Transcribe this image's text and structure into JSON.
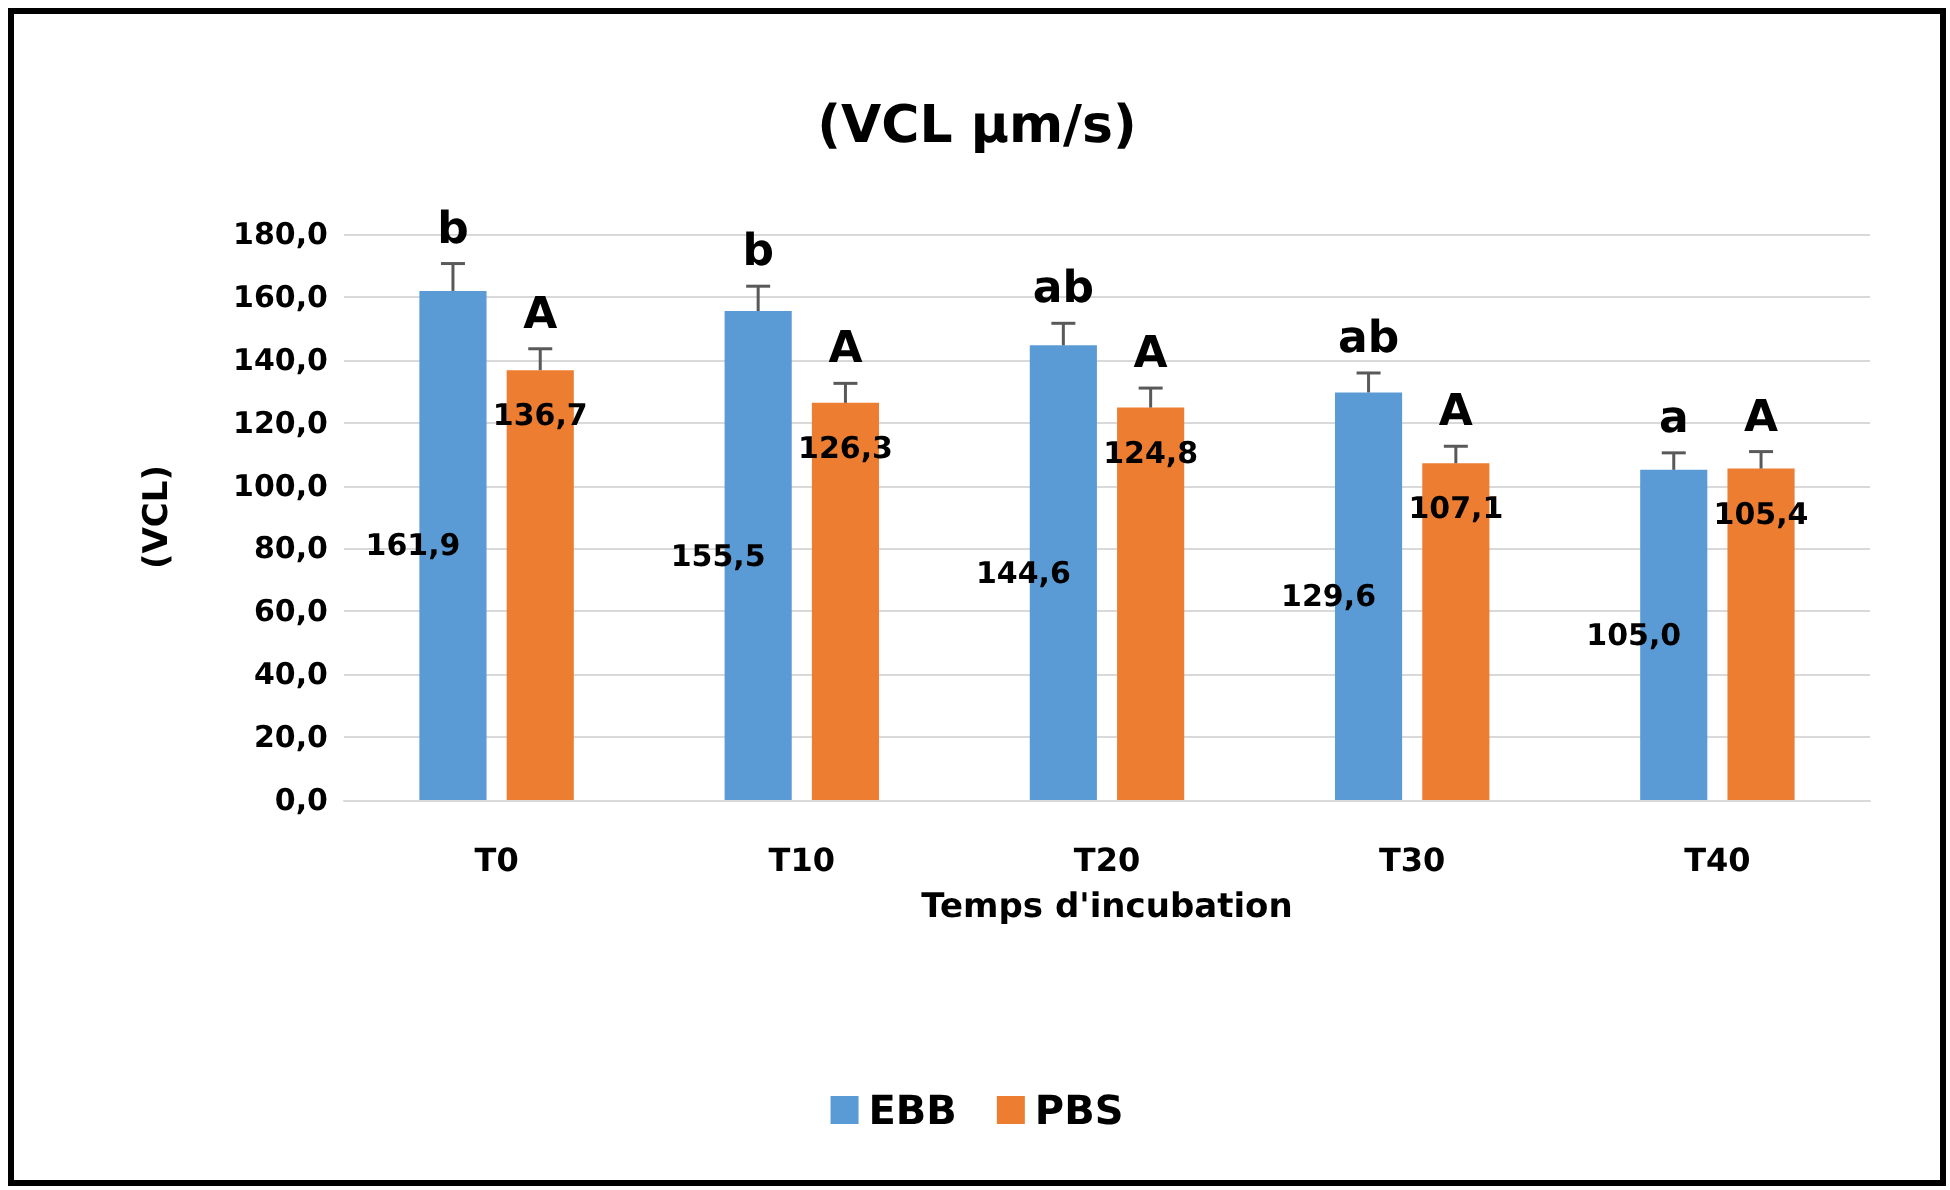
{
  "chart_data": {
    "type": "bar",
    "title": "(VCL µm/s)",
    "xlabel": "Temps d'incubation",
    "ylabel": "(VCL)",
    "categories": [
      "T0",
      "T10",
      "T20",
      "T30",
      "T40"
    ],
    "series": [
      {
        "name": "EBB",
        "color": "#5b9bd5",
        "values": [
          161.9,
          155.5,
          144.6,
          129.6,
          105.0
        ],
        "errors": [
          8.7,
          7.9,
          7.0,
          6.2,
          5.4
        ],
        "value_labels": [
          "161,9",
          "155,5",
          "144,6",
          "129,6",
          "105,0"
        ]
      },
      {
        "name": "PBS",
        "color": "#ed7d31",
        "values": [
          136.7,
          126.3,
          124.8,
          107.1,
          105.4
        ],
        "errors": [
          6.8,
          6.2,
          6.2,
          5.4,
          5.4
        ],
        "value_labels": [
          "136,7",
          "126,3",
          "124,8",
          "107,1",
          "105,4"
        ]
      }
    ],
    "ylim": [
      0,
      180
    ],
    "yticks": [
      {
        "value": 0,
        "label": "0,0"
      },
      {
        "value": 20,
        "label": "20,0"
      },
      {
        "value": 40,
        "label": "40,0"
      },
      {
        "value": 60,
        "label": "60,0"
      },
      {
        "value": 80,
        "label": "80,0"
      },
      {
        "value": 100,
        "label": "100,0"
      },
      {
        "value": 120,
        "label": "120,0"
      },
      {
        "value": 140,
        "label": "140,0"
      },
      {
        "value": 160,
        "label": "160,0"
      },
      {
        "value": 180,
        "label": "180,0"
      }
    ],
    "annotations": [
      "b",
      "A",
      "b",
      "A",
      "ab",
      "A",
      "ab",
      "A",
      "a",
      "A"
    ],
    "grid": "y",
    "legend": "bottom"
  }
}
